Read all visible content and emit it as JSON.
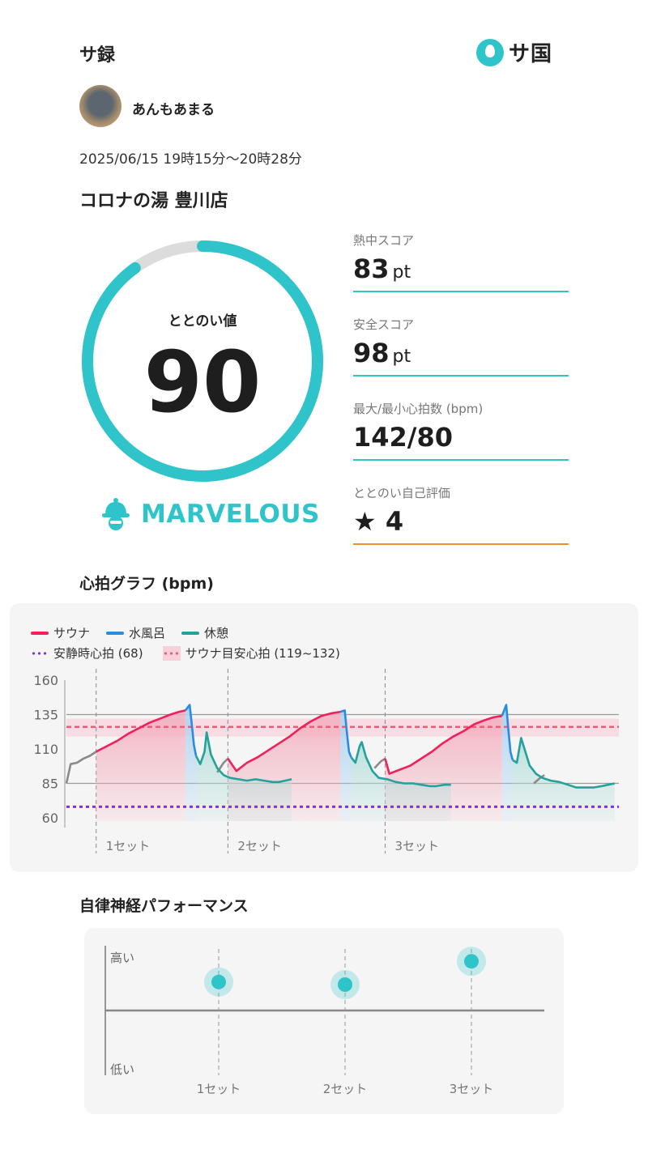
{
  "header": {
    "title": "サ録",
    "logo_text": "サ国"
  },
  "user": {
    "name": "あんもあまる"
  },
  "session": {
    "datetime": "2025/06/15 19時15分〜20時28分",
    "facility": "コロナの湯 豊川店"
  },
  "gauge": {
    "label": "ととのい値",
    "value": "90",
    "max": 100,
    "fill_color": "#2ec4c9",
    "track_color": "#dcdcdc"
  },
  "grade": {
    "icon": "sauna-hat-icon",
    "text": "MARVELOUS"
  },
  "stats": [
    {
      "label": "熱中スコア",
      "value": "83",
      "unit": "pt"
    },
    {
      "label": "安全スコア",
      "value": "98",
      "unit": "pt"
    },
    {
      "label": "最大/最小心拍数 (bpm)",
      "value": "142/80",
      "unit": ""
    },
    {
      "label": "ととのい自己評価",
      "value": "★ 4",
      "unit": ""
    }
  ],
  "heart_rate_section": {
    "title": "心拍グラフ (bpm)"
  },
  "legend": {
    "sauna": "サウナ",
    "cold_bath": "水風呂",
    "rest": "休憩",
    "resting_hr": "安静時心拍 (68)",
    "target_hr": "サウナ目安心拍 (119~132)"
  },
  "colors": {
    "sauna": "#f0205a",
    "cold_bath": "#2a8be0",
    "rest": "#23a19a",
    "resting": "#8b2be2",
    "target": "#f25a7a",
    "other": "#8a8a8a",
    "accent": "#2ec4c9"
  },
  "chart_data": [
    {
      "type": "line",
      "title": "心拍グラフ (bpm)",
      "y_ticks": [
        60,
        85,
        110,
        135,
        160
      ],
      "ylim": [
        60,
        160
      ],
      "resting_hr": 68,
      "target_range": [
        119,
        132
      ],
      "set_labels": [
        "1セット",
        "2セット",
        "3セット"
      ],
      "series": [
        {
          "name": "other",
          "segments": [
            [
              [
                0,
                85
              ],
              [
                2,
                99
              ],
              [
                5,
                100
              ],
              [
                8,
                103
              ],
              [
                11,
                105
              ],
              [
                14,
                108
              ]
            ],
            [
              [
                71,
                93
              ],
              [
                74,
                100
              ],
              [
                76,
                103
              ]
            ],
            [
              [
                145,
                96
              ],
              [
                148,
                101
              ],
              [
                150,
                103
              ]
            ],
            [
              [
                220,
                85
              ],
              [
                223,
                89
              ],
              [
                225,
                91
              ]
            ]
          ]
        },
        {
          "name": "サウナ",
          "segments": [
            [
              [
                14,
                108
              ],
              [
                19,
                112
              ],
              [
                24,
                116
              ],
              [
                29,
                121
              ],
              [
                34,
                125
              ],
              [
                39,
                129
              ],
              [
                44,
                132
              ],
              [
                49,
                135
              ],
              [
                53,
                137
              ],
              [
                56,
                138
              ]
            ],
            [
              [
                76,
                103
              ],
              [
                80,
                94
              ],
              [
                85,
                100
              ],
              [
                90,
                104
              ],
              [
                95,
                109
              ],
              [
                100,
                114
              ],
              [
                105,
                119
              ],
              [
                110,
                125
              ],
              [
                115,
                130
              ],
              [
                120,
                134
              ],
              [
                125,
                136
              ],
              [
                129,
                137
              ]
            ],
            [
              [
                150,
                103
              ],
              [
                152,
                92
              ],
              [
                157,
                95
              ],
              [
                162,
                98
              ],
              [
                167,
                103
              ],
              [
                172,
                108
              ],
              [
                177,
                114
              ],
              [
                182,
                119
              ],
              [
                187,
                123
              ],
              [
                192,
                128
              ],
              [
                197,
                131
              ],
              [
                201,
                133
              ],
              [
                205,
                134
              ]
            ]
          ]
        },
        {
          "name": "水風呂",
          "segments": [
            [
              [
                56,
                138
              ],
              [
                58,
                142
              ],
              [
                59,
                128
              ],
              [
                60,
                113
              ],
              [
                61,
                105
              ]
            ],
            [
              [
                129,
                137
              ],
              [
                131,
                138
              ],
              [
                132,
                122
              ],
              [
                133,
                108
              ],
              [
                134,
                104
              ]
            ],
            [
              [
                205,
                134
              ],
              [
                207,
                142
              ],
              [
                208,
                124
              ],
              [
                209,
                108
              ],
              [
                210,
                102
              ]
            ]
          ]
        },
        {
          "name": "休憩",
          "segments": [
            [
              [
                61,
                105
              ],
              [
                63,
                99
              ],
              [
                65,
                108
              ],
              [
                66,
                122
              ],
              [
                68,
                106
              ],
              [
                71,
                96
              ],
              [
                74,
                91
              ],
              [
                77,
                89
              ],
              [
                81,
                88
              ],
              [
                85,
                87
              ],
              [
                89,
                88
              ],
              [
                93,
                87
              ],
              [
                97,
                86
              ],
              [
                100,
                86
              ],
              [
                103,
                87
              ],
              [
                106,
                88
              ]
            ],
            [
              [
                134,
                104
              ],
              [
                136,
                100
              ],
              [
                138,
                112
              ],
              [
                139,
                115
              ],
              [
                141,
                104
              ],
              [
                144,
                94
              ],
              [
                147,
                89
              ],
              [
                151,
                88
              ],
              [
                155,
                86
              ],
              [
                159,
                85
              ],
              [
                163,
                85
              ],
              [
                167,
                84
              ],
              [
                171,
                83
              ],
              [
                174,
                83
              ],
              [
                178,
                84
              ],
              [
                181,
                84
              ]
            ],
            [
              [
                210,
                102
              ],
              [
                212,
                100
              ],
              [
                214,
                118
              ],
              [
                216,
                108
              ],
              [
                218,
                98
              ],
              [
                221,
                92
              ],
              [
                224,
                89
              ],
              [
                228,
                87
              ],
              [
                232,
                86
              ],
              [
                236,
                84
              ],
              [
                240,
                82
              ],
              [
                244,
                82
              ],
              [
                248,
                82
              ],
              [
                252,
                83
              ],
              [
                255,
                84
              ],
              [
                258,
                85
              ]
            ]
          ]
        }
      ]
    },
    {
      "type": "scatter",
      "title": "自律神経パフォーマンス",
      "y_labels": [
        "高い",
        "低い"
      ],
      "categories": [
        "1セット",
        "2セット",
        "3セット"
      ],
      "values": [
        0.72,
        0.7,
        0.88
      ]
    }
  ],
  "ans_section": {
    "title": "自律神経パフォーマンス"
  }
}
